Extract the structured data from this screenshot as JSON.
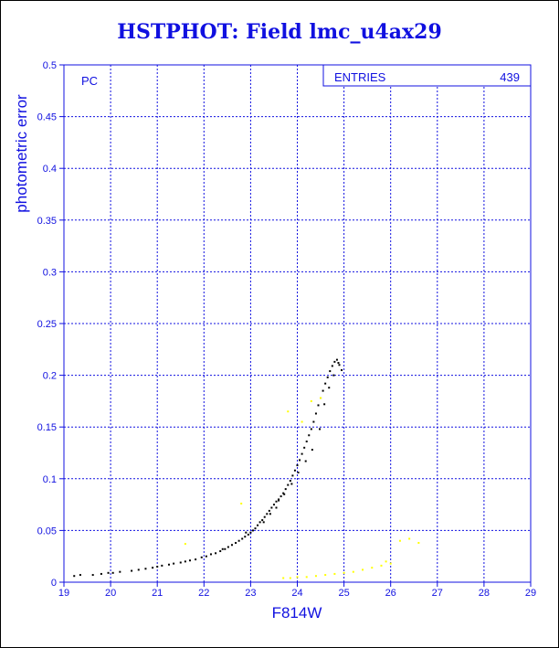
{
  "chart_data": {
    "type": "scatter",
    "title": "HSTPHOT: Field lmc_u4ax29",
    "xlabel": "F814W",
    "ylabel": "photometric error",
    "xlim": [
      19,
      29
    ],
    "ylim": [
      0,
      0.5
    ],
    "xticks": [
      "19",
      "20",
      "21",
      "22",
      "23",
      "24",
      "25",
      "26",
      "27",
      "28",
      "29"
    ],
    "yticks": [
      "0",
      "0.05",
      "0.1",
      "0.15",
      "0.2",
      "0.25",
      "0.3",
      "0.35",
      "0.4",
      "0.45",
      "0.5"
    ],
    "grid": true,
    "camera_label": "PC",
    "stats": {
      "label": "ENTRIES",
      "value": "439"
    },
    "series": [
      {
        "color": "#000000",
        "x": [
          19.22,
          19.35,
          19.62,
          19.8,
          19.95,
          20.05,
          20.2,
          20.45,
          20.6,
          20.75,
          20.9,
          21.0,
          21.1,
          21.25,
          21.35,
          21.5,
          21.6,
          21.7,
          21.82,
          21.95,
          22.05,
          22.15,
          22.25,
          22.35,
          22.45,
          22.52,
          22.6,
          22.68,
          22.75,
          22.82,
          22.88,
          22.95,
          23.0,
          23.05,
          23.1,
          23.15,
          23.2,
          23.25,
          23.3,
          23.35,
          23.4,
          23.45,
          23.5,
          23.55,
          23.6,
          23.65,
          23.7,
          23.75,
          23.8,
          23.85,
          23.9,
          23.95,
          24.0,
          24.05,
          24.1,
          24.15,
          24.2,
          24.25,
          24.3,
          24.35,
          24.4,
          24.45,
          24.5,
          24.55,
          24.6,
          24.65,
          24.7,
          24.75,
          24.8,
          24.85,
          24.9,
          24.95,
          23.28,
          23.42,
          23.55,
          23.72,
          23.88,
          24.02,
          24.18,
          24.32,
          24.48,
          24.58,
          24.68,
          24.78,
          24.88,
          22.4,
          22.9,
          23.6
        ],
        "y": [
          0.006,
          0.007,
          0.007,
          0.008,
          0.009,
          0.009,
          0.01,
          0.011,
          0.012,
          0.013,
          0.014,
          0.015,
          0.016,
          0.017,
          0.018,
          0.019,
          0.02,
          0.021,
          0.022,
          0.024,
          0.025,
          0.027,
          0.028,
          0.03,
          0.032,
          0.034,
          0.036,
          0.038,
          0.04,
          0.042,
          0.044,
          0.046,
          0.048,
          0.05,
          0.052,
          0.055,
          0.058,
          0.06,
          0.063,
          0.066,
          0.069,
          0.072,
          0.075,
          0.078,
          0.08,
          0.083,
          0.086,
          0.09,
          0.094,
          0.098,
          0.103,
          0.108,
          0.113,
          0.118,
          0.124,
          0.13,
          0.136,
          0.142,
          0.148,
          0.155,
          0.163,
          0.171,
          0.178,
          0.185,
          0.192,
          0.198,
          0.204,
          0.209,
          0.213,
          0.215,
          0.21,
          0.205,
          0.058,
          0.066,
          0.072,
          0.085,
          0.095,
          0.106,
          0.117,
          0.128,
          0.148,
          0.172,
          0.188,
          0.2,
          0.212,
          0.032,
          0.048,
          0.079
        ]
      },
      {
        "color": "#ffff00",
        "x": [
          21.6,
          22.8,
          23.8,
          24.1,
          24.5,
          23.7,
          23.85,
          24.0,
          24.2,
          24.4,
          24.6,
          24.8,
          25.0,
          25.2,
          25.4,
          25.6,
          25.8,
          26.0,
          26.2,
          26.4,
          26.6,
          25.9,
          24.3
        ],
        "y": [
          0.037,
          0.076,
          0.165,
          0.155,
          0.178,
          0.004,
          0.004,
          0.005,
          0.005,
          0.006,
          0.007,
          0.008,
          0.009,
          0.01,
          0.012,
          0.014,
          0.016,
          0.018,
          0.04,
          0.042,
          0.038,
          0.02,
          0.175
        ]
      }
    ]
  }
}
